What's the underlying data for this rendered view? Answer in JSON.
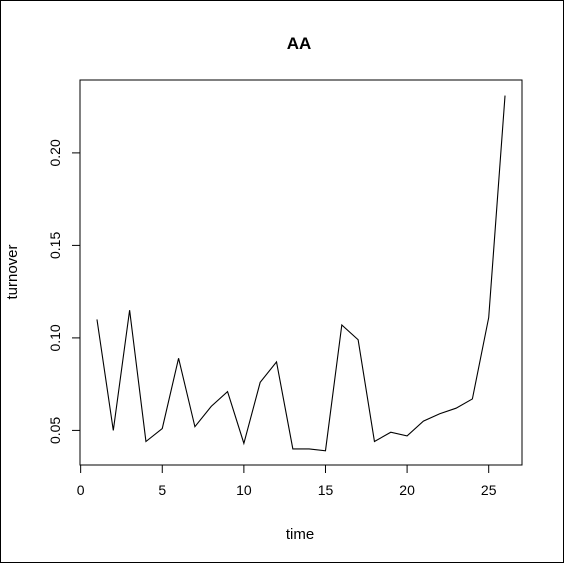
{
  "chart_data": {
    "type": "line",
    "title": "AA",
    "xlabel": "time",
    "ylabel": "turnover",
    "xlim": [
      -0.04,
      27.04
    ],
    "ylim": [
      0.0313,
      0.2394
    ],
    "x_ticks": [
      0,
      5,
      10,
      15,
      20,
      25
    ],
    "x_tick_labels": [
      "0",
      "5",
      "10",
      "15",
      "20",
      "25"
    ],
    "y_ticks": [
      0.05,
      0.1,
      0.15,
      0.2
    ],
    "y_tick_labels": [
      "0.05",
      "0.10",
      "0.15",
      "0.20"
    ],
    "grid": false,
    "legend": "none",
    "line_color": "#000000",
    "series": [
      {
        "x": [
          1,
          2,
          3,
          4,
          5,
          6,
          7,
          8,
          9,
          10,
          11,
          12,
          13,
          14,
          15,
          16,
          17,
          18,
          19,
          20,
          21,
          22,
          23,
          24,
          25,
          26
        ],
        "y": [
          0.11,
          0.05,
          0.115,
          0.044,
          0.051,
          0.089,
          0.052,
          0.063,
          0.071,
          0.043,
          0.076,
          0.087,
          0.04,
          0.04,
          0.039,
          0.107,
          0.099,
          0.044,
          0.049,
          0.047,
          0.055,
          0.059,
          0.062,
          0.067,
          0.111,
          0.231
        ]
      }
    ]
  }
}
